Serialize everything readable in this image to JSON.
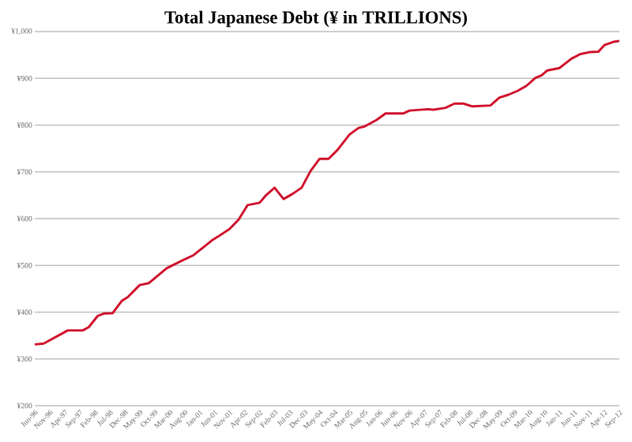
{
  "chart_data": {
    "type": "line",
    "title": "Total Japanese Debt (¥ in TRILLIONS)",
    "x": [
      "1996-06",
      "1996-09",
      "1997-05",
      "1997-10",
      "1997-12",
      "1998-03",
      "1998-05",
      "1998-08",
      "1998-11",
      "1999-01",
      "1999-05",
      "1999-08",
      "2000-02",
      "2000-07",
      "2000-11",
      "2001-05",
      "2001-07",
      "2001-11",
      "2002-02",
      "2002-05",
      "2002-09",
      "2002-11",
      "2003-02",
      "2003-05",
      "2003-08",
      "2003-11",
      "2004-02",
      "2004-05",
      "2004-08",
      "2004-11",
      "2005-03",
      "2005-06",
      "2005-08",
      "2005-12",
      "2006-03",
      "2006-09",
      "2006-11",
      "2007-05",
      "2007-07",
      "2007-11",
      "2008-02",
      "2008-05",
      "2008-08",
      "2009-02",
      "2009-05",
      "2009-08",
      "2009-11",
      "2010-02",
      "2010-05",
      "2010-07",
      "2010-09",
      "2011-01",
      "2011-05",
      "2011-08",
      "2011-11",
      "2012-02",
      "2012-04",
      "2012-07",
      "2012-09"
    ],
    "series": [
      {
        "color": "#d0102a",
        "values": [
          331,
          333,
          361,
          361,
          368,
          392,
          397,
          398,
          424,
          432,
          458,
          462,
          494,
          510,
          522,
          553,
          561,
          578,
          598,
          629,
          634,
          649,
          666,
          642,
          653,
          666,
          702,
          728,
          728,
          747,
          780,
          794,
          797,
          811,
          825,
          825,
          831,
          834,
          833,
          837,
          846,
          846,
          840,
          842,
          859,
          865,
          873,
          884,
          901,
          906,
          917,
          922,
          942,
          952,
          956,
          957,
          971,
          978,
          980
        ]
      }
    ],
    "xlim": [
      "1996-06",
      "2012-09"
    ],
    "xticks": [
      {
        "value": "1996-06",
        "label": "Jun-96"
      },
      {
        "value": "1996-11",
        "label": "Nov-96"
      },
      {
        "value": "1997-04",
        "label": "Apr-97"
      },
      {
        "value": "1997-09",
        "label": "Sep-97"
      },
      {
        "value": "1998-02",
        "label": "Feb-98"
      },
      {
        "value": "1998-07",
        "label": "Jul-98"
      },
      {
        "value": "1998-12",
        "label": "Dec-98"
      },
      {
        "value": "1999-05",
        "label": "May-99"
      },
      {
        "value": "1999-10",
        "label": "Oct-99"
      },
      {
        "value": "2000-03",
        "label": "Mar-00"
      },
      {
        "value": "2000-08",
        "label": "Aug-00"
      },
      {
        "value": "2001-01",
        "label": "Jan-01"
      },
      {
        "value": "2001-06",
        "label": "Jun-01"
      },
      {
        "value": "2001-11",
        "label": "Nov-01"
      },
      {
        "value": "2002-04",
        "label": "Apr-02"
      },
      {
        "value": "2002-09",
        "label": "Sep-02"
      },
      {
        "value": "2003-02",
        "label": "Feb-03"
      },
      {
        "value": "2003-07",
        "label": "Jul-03"
      },
      {
        "value": "2003-12",
        "label": "Dec-03"
      },
      {
        "value": "2004-05",
        "label": "May-04"
      },
      {
        "value": "2004-10",
        "label": "Oct-04"
      },
      {
        "value": "2005-03",
        "label": "Mar-05"
      },
      {
        "value": "2005-08",
        "label": "Aug-05"
      },
      {
        "value": "2006-01",
        "label": "Jan-06"
      },
      {
        "value": "2006-06",
        "label": "Jun-06"
      },
      {
        "value": "2006-11",
        "label": "Nov-06"
      },
      {
        "value": "2007-04",
        "label": "Apr-07"
      },
      {
        "value": "2007-09",
        "label": "Sep-07"
      },
      {
        "value": "2008-02",
        "label": "Feb-08"
      },
      {
        "value": "2008-07",
        "label": "Jul-08"
      },
      {
        "value": "2008-12",
        "label": "Dec-08"
      },
      {
        "value": "2009-05",
        "label": "May-09"
      },
      {
        "value": "2009-10",
        "label": "Oct-09"
      },
      {
        "value": "2010-03",
        "label": "Mar-10"
      },
      {
        "value": "2010-08",
        "label": "Aug-10"
      },
      {
        "value": "2011-01",
        "label": "Jan-11"
      },
      {
        "value": "2011-06",
        "label": "Jun-11"
      },
      {
        "value": "2011-11",
        "label": "Nov-11"
      },
      {
        "value": "2012-04",
        "label": "Apr-12"
      },
      {
        "value": "2012-09",
        "label": "Sep-12"
      }
    ],
    "ylim": [
      200,
      1000
    ],
    "yticks": [
      {
        "value": 200,
        "label": "¥200"
      },
      {
        "value": 300,
        "label": "¥300"
      },
      {
        "value": 400,
        "label": "¥400"
      },
      {
        "value": 500,
        "label": "¥500"
      },
      {
        "value": 600,
        "label": "¥600"
      },
      {
        "value": 700,
        "label": "¥700"
      },
      {
        "value": 800,
        "label": "¥800"
      },
      {
        "value": 900,
        "label": "¥900"
      },
      {
        "value": 1000,
        "label": "¥1,000"
      }
    ],
    "grid": "y",
    "marker": "none",
    "line_style": "solid"
  }
}
